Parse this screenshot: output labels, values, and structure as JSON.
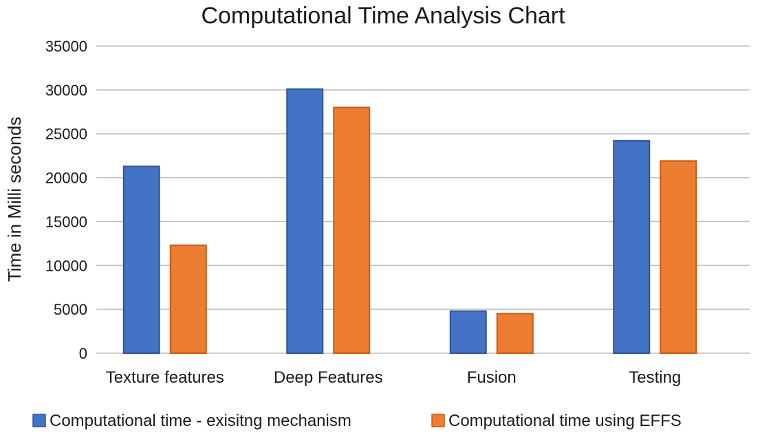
{
  "chart_data": {
    "type": "bar",
    "title": "Computational Time Analysis Chart",
    "xlabel": "",
    "ylabel": "Time in Milli seconds",
    "ylim": [
      0,
      35000
    ],
    "yticks": [
      0,
      5000,
      10000,
      15000,
      20000,
      25000,
      30000,
      35000
    ],
    "grid": true,
    "legend_position": "bottom",
    "categories": [
      "Texture features",
      "Deep Features",
      "Fusion",
      "Testing"
    ],
    "series": [
      {
        "name": "Computational time - exisitng mechanism",
        "color": "#4472c4",
        "values": [
          21300,
          30100,
          4800,
          24200
        ]
      },
      {
        "name": "Computational time using EFFS",
        "color": "#ed7d31",
        "values": [
          12300,
          28000,
          4500,
          21900
        ]
      }
    ]
  }
}
